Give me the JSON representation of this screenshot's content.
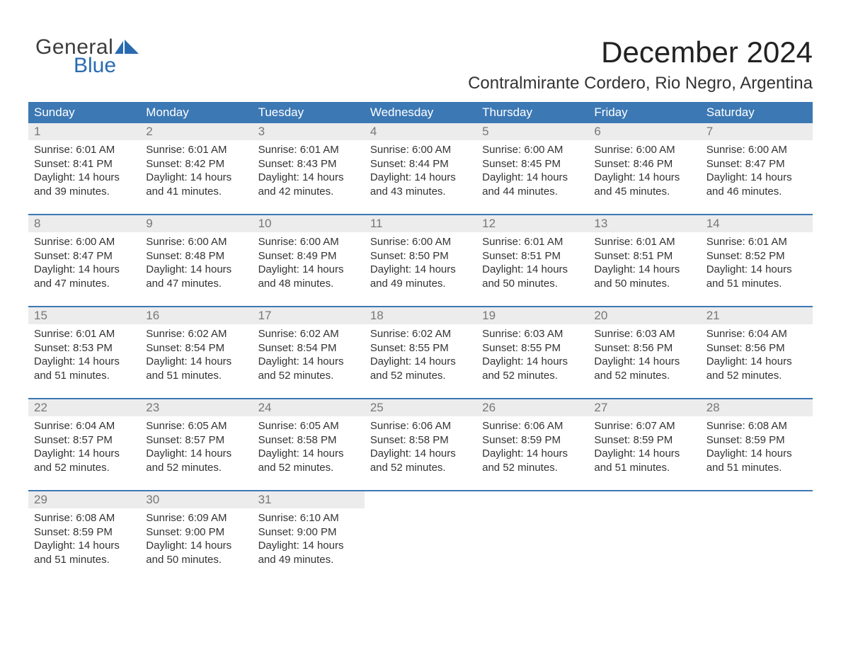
{
  "logo": {
    "text1": "General",
    "text2": "Blue",
    "icon_color": "#2a6bb0",
    "text1_color": "#3d3d3d",
    "text2_color": "#2a6bb0"
  },
  "title": "December 2024",
  "location": "Contralmirante Cordero, Rio Negro, Argentina",
  "colors": {
    "header_bg": "#3c78b4",
    "header_text": "#ffffff",
    "daynum_bg": "#ececec",
    "daynum_text": "#777777",
    "body_text": "#333333",
    "sep_line": "#3c78b4"
  },
  "day_headers": [
    "Sunday",
    "Monday",
    "Tuesday",
    "Wednesday",
    "Thursday",
    "Friday",
    "Saturday"
  ],
  "weeks": [
    [
      {
        "n": "1",
        "sr": "Sunrise: 6:01 AM",
        "ss": "Sunset: 8:41 PM",
        "d1": "Daylight: 14 hours",
        "d2": "and 39 minutes."
      },
      {
        "n": "2",
        "sr": "Sunrise: 6:01 AM",
        "ss": "Sunset: 8:42 PM",
        "d1": "Daylight: 14 hours",
        "d2": "and 41 minutes."
      },
      {
        "n": "3",
        "sr": "Sunrise: 6:01 AM",
        "ss": "Sunset: 8:43 PM",
        "d1": "Daylight: 14 hours",
        "d2": "and 42 minutes."
      },
      {
        "n": "4",
        "sr": "Sunrise: 6:00 AM",
        "ss": "Sunset: 8:44 PM",
        "d1": "Daylight: 14 hours",
        "d2": "and 43 minutes."
      },
      {
        "n": "5",
        "sr": "Sunrise: 6:00 AM",
        "ss": "Sunset: 8:45 PM",
        "d1": "Daylight: 14 hours",
        "d2": "and 44 minutes."
      },
      {
        "n": "6",
        "sr": "Sunrise: 6:00 AM",
        "ss": "Sunset: 8:46 PM",
        "d1": "Daylight: 14 hours",
        "d2": "and 45 minutes."
      },
      {
        "n": "7",
        "sr": "Sunrise: 6:00 AM",
        "ss": "Sunset: 8:47 PM",
        "d1": "Daylight: 14 hours",
        "d2": "and 46 minutes."
      }
    ],
    [
      {
        "n": "8",
        "sr": "Sunrise: 6:00 AM",
        "ss": "Sunset: 8:47 PM",
        "d1": "Daylight: 14 hours",
        "d2": "and 47 minutes."
      },
      {
        "n": "9",
        "sr": "Sunrise: 6:00 AM",
        "ss": "Sunset: 8:48 PM",
        "d1": "Daylight: 14 hours",
        "d2": "and 47 minutes."
      },
      {
        "n": "10",
        "sr": "Sunrise: 6:00 AM",
        "ss": "Sunset: 8:49 PM",
        "d1": "Daylight: 14 hours",
        "d2": "and 48 minutes."
      },
      {
        "n": "11",
        "sr": "Sunrise: 6:00 AM",
        "ss": "Sunset: 8:50 PM",
        "d1": "Daylight: 14 hours",
        "d2": "and 49 minutes."
      },
      {
        "n": "12",
        "sr": "Sunrise: 6:01 AM",
        "ss": "Sunset: 8:51 PM",
        "d1": "Daylight: 14 hours",
        "d2": "and 50 minutes."
      },
      {
        "n": "13",
        "sr": "Sunrise: 6:01 AM",
        "ss": "Sunset: 8:51 PM",
        "d1": "Daylight: 14 hours",
        "d2": "and 50 minutes."
      },
      {
        "n": "14",
        "sr": "Sunrise: 6:01 AM",
        "ss": "Sunset: 8:52 PM",
        "d1": "Daylight: 14 hours",
        "d2": "and 51 minutes."
      }
    ],
    [
      {
        "n": "15",
        "sr": "Sunrise: 6:01 AM",
        "ss": "Sunset: 8:53 PM",
        "d1": "Daylight: 14 hours",
        "d2": "and 51 minutes."
      },
      {
        "n": "16",
        "sr": "Sunrise: 6:02 AM",
        "ss": "Sunset: 8:54 PM",
        "d1": "Daylight: 14 hours",
        "d2": "and 51 minutes."
      },
      {
        "n": "17",
        "sr": "Sunrise: 6:02 AM",
        "ss": "Sunset: 8:54 PM",
        "d1": "Daylight: 14 hours",
        "d2": "and 52 minutes."
      },
      {
        "n": "18",
        "sr": "Sunrise: 6:02 AM",
        "ss": "Sunset: 8:55 PM",
        "d1": "Daylight: 14 hours",
        "d2": "and 52 minutes."
      },
      {
        "n": "19",
        "sr": "Sunrise: 6:03 AM",
        "ss": "Sunset: 8:55 PM",
        "d1": "Daylight: 14 hours",
        "d2": "and 52 minutes."
      },
      {
        "n": "20",
        "sr": "Sunrise: 6:03 AM",
        "ss": "Sunset: 8:56 PM",
        "d1": "Daylight: 14 hours",
        "d2": "and 52 minutes."
      },
      {
        "n": "21",
        "sr": "Sunrise: 6:04 AM",
        "ss": "Sunset: 8:56 PM",
        "d1": "Daylight: 14 hours",
        "d2": "and 52 minutes."
      }
    ],
    [
      {
        "n": "22",
        "sr": "Sunrise: 6:04 AM",
        "ss": "Sunset: 8:57 PM",
        "d1": "Daylight: 14 hours",
        "d2": "and 52 minutes."
      },
      {
        "n": "23",
        "sr": "Sunrise: 6:05 AM",
        "ss": "Sunset: 8:57 PM",
        "d1": "Daylight: 14 hours",
        "d2": "and 52 minutes."
      },
      {
        "n": "24",
        "sr": "Sunrise: 6:05 AM",
        "ss": "Sunset: 8:58 PM",
        "d1": "Daylight: 14 hours",
        "d2": "and 52 minutes."
      },
      {
        "n": "25",
        "sr": "Sunrise: 6:06 AM",
        "ss": "Sunset: 8:58 PM",
        "d1": "Daylight: 14 hours",
        "d2": "and 52 minutes."
      },
      {
        "n": "26",
        "sr": "Sunrise: 6:06 AM",
        "ss": "Sunset: 8:59 PM",
        "d1": "Daylight: 14 hours",
        "d2": "and 52 minutes."
      },
      {
        "n": "27",
        "sr": "Sunrise: 6:07 AM",
        "ss": "Sunset: 8:59 PM",
        "d1": "Daylight: 14 hours",
        "d2": "and 51 minutes."
      },
      {
        "n": "28",
        "sr": "Sunrise: 6:08 AM",
        "ss": "Sunset: 8:59 PM",
        "d1": "Daylight: 14 hours",
        "d2": "and 51 minutes."
      }
    ],
    [
      {
        "n": "29",
        "sr": "Sunrise: 6:08 AM",
        "ss": "Sunset: 8:59 PM",
        "d1": "Daylight: 14 hours",
        "d2": "and 51 minutes."
      },
      {
        "n": "30",
        "sr": "Sunrise: 6:09 AM",
        "ss": "Sunset: 9:00 PM",
        "d1": "Daylight: 14 hours",
        "d2": "and 50 minutes."
      },
      {
        "n": "31",
        "sr": "Sunrise: 6:10 AM",
        "ss": "Sunset: 9:00 PM",
        "d1": "Daylight: 14 hours",
        "d2": "and 49 minutes."
      },
      null,
      null,
      null,
      null
    ]
  ]
}
